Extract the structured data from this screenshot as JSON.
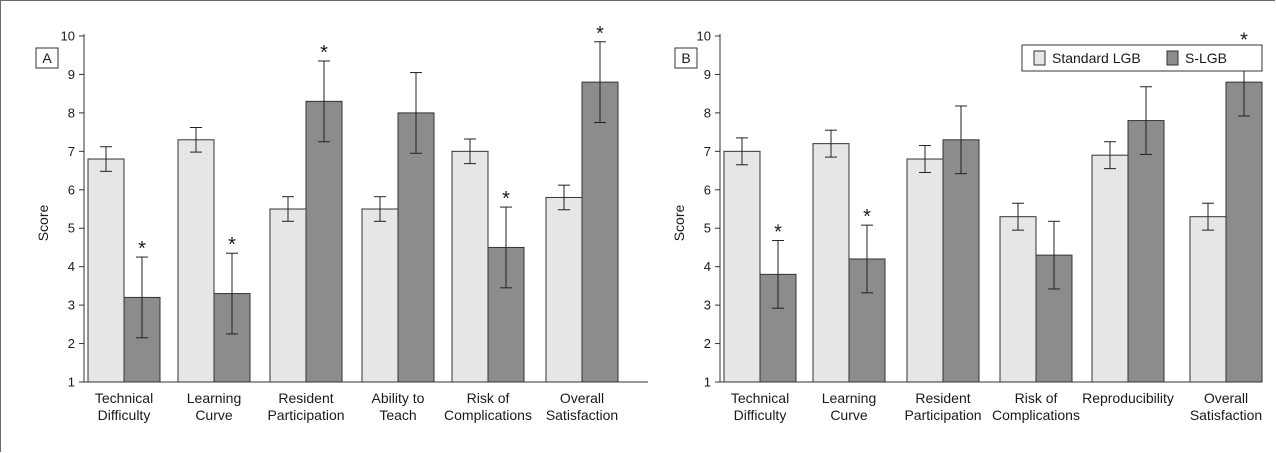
{
  "legend": {
    "placement": "top-right of panel B",
    "items": [
      {
        "label": "Standard LGB",
        "color": "#e6e6e6"
      },
      {
        "label": "S-LGB",
        "color": "#8c8c8c"
      }
    ]
  },
  "colors": {
    "standard": "#e6e6e6",
    "slgb": "#8c8c8c",
    "stroke": "#333333"
  },
  "significance_marker": "*",
  "chart_data": [
    {
      "panel": "A",
      "type": "bar",
      "ylabel": "Score",
      "ylim": [
        1,
        10
      ],
      "yticks": [
        "1",
        "2",
        "3",
        "4",
        "5",
        "6",
        "7",
        "8",
        "9",
        "10"
      ],
      "grid": false,
      "categories": [
        [
          "Technical",
          "Difficulty"
        ],
        [
          "Learning",
          "Curve"
        ],
        [
          "Resident",
          "Participation"
        ],
        [
          "Ability to",
          "Teach"
        ],
        [
          "Risk of",
          "Complications"
        ],
        [
          "Overall",
          "Satisfaction"
        ]
      ],
      "series": [
        {
          "name": "Standard LGB",
          "values": [
            6.8,
            7.3,
            5.5,
            5.5,
            7.0,
            5.8
          ],
          "errors": [
            0.32,
            0.32,
            0.32,
            0.32,
            0.32,
            0.32
          ],
          "significant": [
            false,
            false,
            false,
            false,
            false,
            false
          ]
        },
        {
          "name": "S-LGB",
          "values": [
            3.2,
            3.3,
            8.3,
            8.0,
            4.5,
            8.8
          ],
          "errors": [
            1.05,
            1.05,
            1.05,
            1.05,
            1.05,
            1.05
          ],
          "significant": [
            true,
            true,
            true,
            false,
            true,
            true
          ]
        }
      ]
    },
    {
      "panel": "B",
      "type": "bar",
      "ylabel": "Score",
      "ylim": [
        1,
        10
      ],
      "yticks": [
        "1",
        "2",
        "3",
        "4",
        "5",
        "6",
        "7",
        "8",
        "9",
        "10"
      ],
      "grid": false,
      "categories": [
        [
          "Technical",
          "Difficulty"
        ],
        [
          "Learning",
          "Curve"
        ],
        [
          "Resident",
          "Participation"
        ],
        [
          "Risk of",
          "Complications"
        ],
        [
          "Reproducibility"
        ],
        [
          "Overall",
          "Satisfaction"
        ]
      ],
      "series": [
        {
          "name": "Standard LGB",
          "values": [
            7.0,
            7.2,
            6.8,
            5.3,
            6.9,
            5.3
          ],
          "errors": [
            0.35,
            0.35,
            0.35,
            0.35,
            0.35,
            0.35
          ],
          "significant": [
            false,
            false,
            false,
            false,
            false,
            false
          ]
        },
        {
          "name": "S-LGB",
          "values": [
            3.8,
            4.2,
            7.3,
            4.3,
            7.8,
            8.8
          ],
          "errors": [
            0.88,
            0.88,
            0.88,
            0.88,
            0.88,
            0.88
          ],
          "significant": [
            true,
            true,
            false,
            false,
            false,
            true
          ]
        }
      ]
    }
  ]
}
